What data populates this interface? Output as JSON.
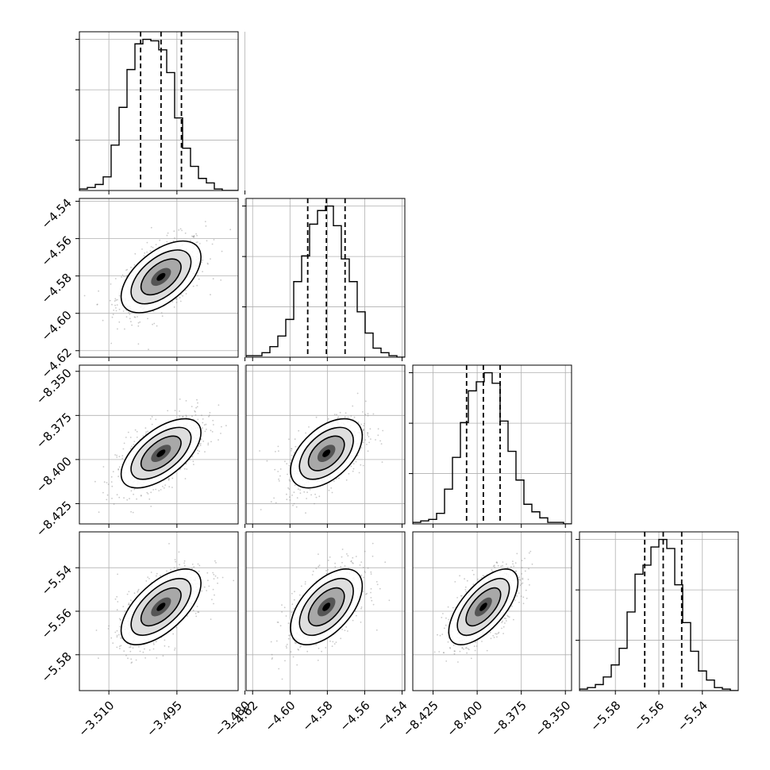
{
  "chart_data": {
    "type": "corner",
    "grid": true,
    "parameters": [
      {
        "center": -3.4985,
        "sigma": 0.0044,
        "quantiles": [
          -3.503,
          -3.4985,
          -3.494
        ],
        "hist_counts": [
          1,
          2,
          4,
          9,
          30,
          55,
          80,
          97,
          100,
          99,
          93,
          78,
          48,
          28,
          16,
          8,
          5,
          1,
          0,
          0
        ]
      },
      {
        "center": -4.5805,
        "sigma": 0.0096,
        "quantiles": [
          -4.5905,
          -4.5805,
          -4.5705
        ],
        "hist_counts": [
          1,
          1,
          3,
          7,
          14,
          25,
          50,
          67,
          88,
          97,
          100,
          87,
          65,
          50,
          30,
          16,
          6,
          3,
          1,
          0
        ]
      },
      {
        "center": -8.3965,
        "sigma": 0.0098,
        "quantiles": [
          -8.406,
          -8.3965,
          -8.387
        ],
        "hist_counts": [
          1,
          2,
          3,
          7,
          23,
          44,
          67,
          88,
          94,
          100,
          93,
          68,
          48,
          29,
          13,
          8,
          4,
          1,
          1,
          0
        ]
      },
      {
        "center": -5.558,
        "sigma": 0.0087,
        "quantiles": [
          -5.5665,
          -5.558,
          -5.5495
        ],
        "hist_counts": [
          1,
          2,
          4,
          9,
          17,
          28,
          52,
          77,
          83,
          95,
          100,
          94,
          70,
          45,
          26,
          13,
          7,
          2,
          1,
          0
        ]
      }
    ],
    "ranges": [
      [
        -3.5165,
        -3.4815
      ],
      [
        -4.6235,
        -4.5385
      ],
      [
        -8.4365,
        -8.3465
      ],
      [
        -5.5965,
        -5.5235
      ]
    ],
    "x_ticks": [
      {
        "values": [
          -3.51,
          -3.495,
          -3.48
        ],
        "labels": [
          "−3.510",
          "−3.495",
          "−3.480"
        ]
      },
      {
        "values": [
          -4.62,
          -4.6,
          -4.58,
          -4.56,
          -4.54
        ],
        "labels": [
          "−4.62",
          "−4.60",
          "−4.58",
          "−4.56",
          "−4.54"
        ]
      },
      {
        "values": [
          -8.425,
          -8.4,
          -8.375,
          -8.35
        ],
        "labels": [
          "−8.425",
          "−8.400",
          "−8.375",
          "−8.350"
        ]
      },
      {
        "values": [
          -5.58,
          -5.56,
          -5.54
        ],
        "labels": [
          "−5.58",
          "−5.56",
          "−5.54"
        ]
      }
    ],
    "y_ticks": [
      null,
      {
        "values": [
          -4.54,
          -4.56,
          -4.58,
          -4.6,
          -4.62
        ],
        "labels": [
          "−4.54",
          "−4.56",
          "−4.58",
          "−4.60",
          "−4.62"
        ]
      },
      {
        "values": [
          -8.35,
          -8.375,
          -8.4,
          -8.425
        ],
        "labels": [
          "−8.350",
          "−8.375",
          "−8.400",
          "−8.425"
        ]
      },
      {
        "values": [
          -5.54,
          -5.56,
          -5.58
        ],
        "labels": [
          "−5.54",
          "−5.56",
          "−5.58"
        ]
      }
    ],
    "correlations": [
      [
        1.0,
        0.55,
        0.6,
        0.62
      ],
      [
        0.55,
        1.0,
        0.5,
        0.55
      ],
      [
        0.6,
        0.5,
        1.0,
        0.65
      ],
      [
        0.62,
        0.55,
        0.65,
        1.0
      ]
    ],
    "contour_sigma_levels": [
      0.5,
      1.0,
      1.5,
      2.0
    ],
    "colors": {
      "contour": "#000000",
      "points": "#888888",
      "grid": "#b0b0b0",
      "quantile_line": "#000000"
    }
  }
}
